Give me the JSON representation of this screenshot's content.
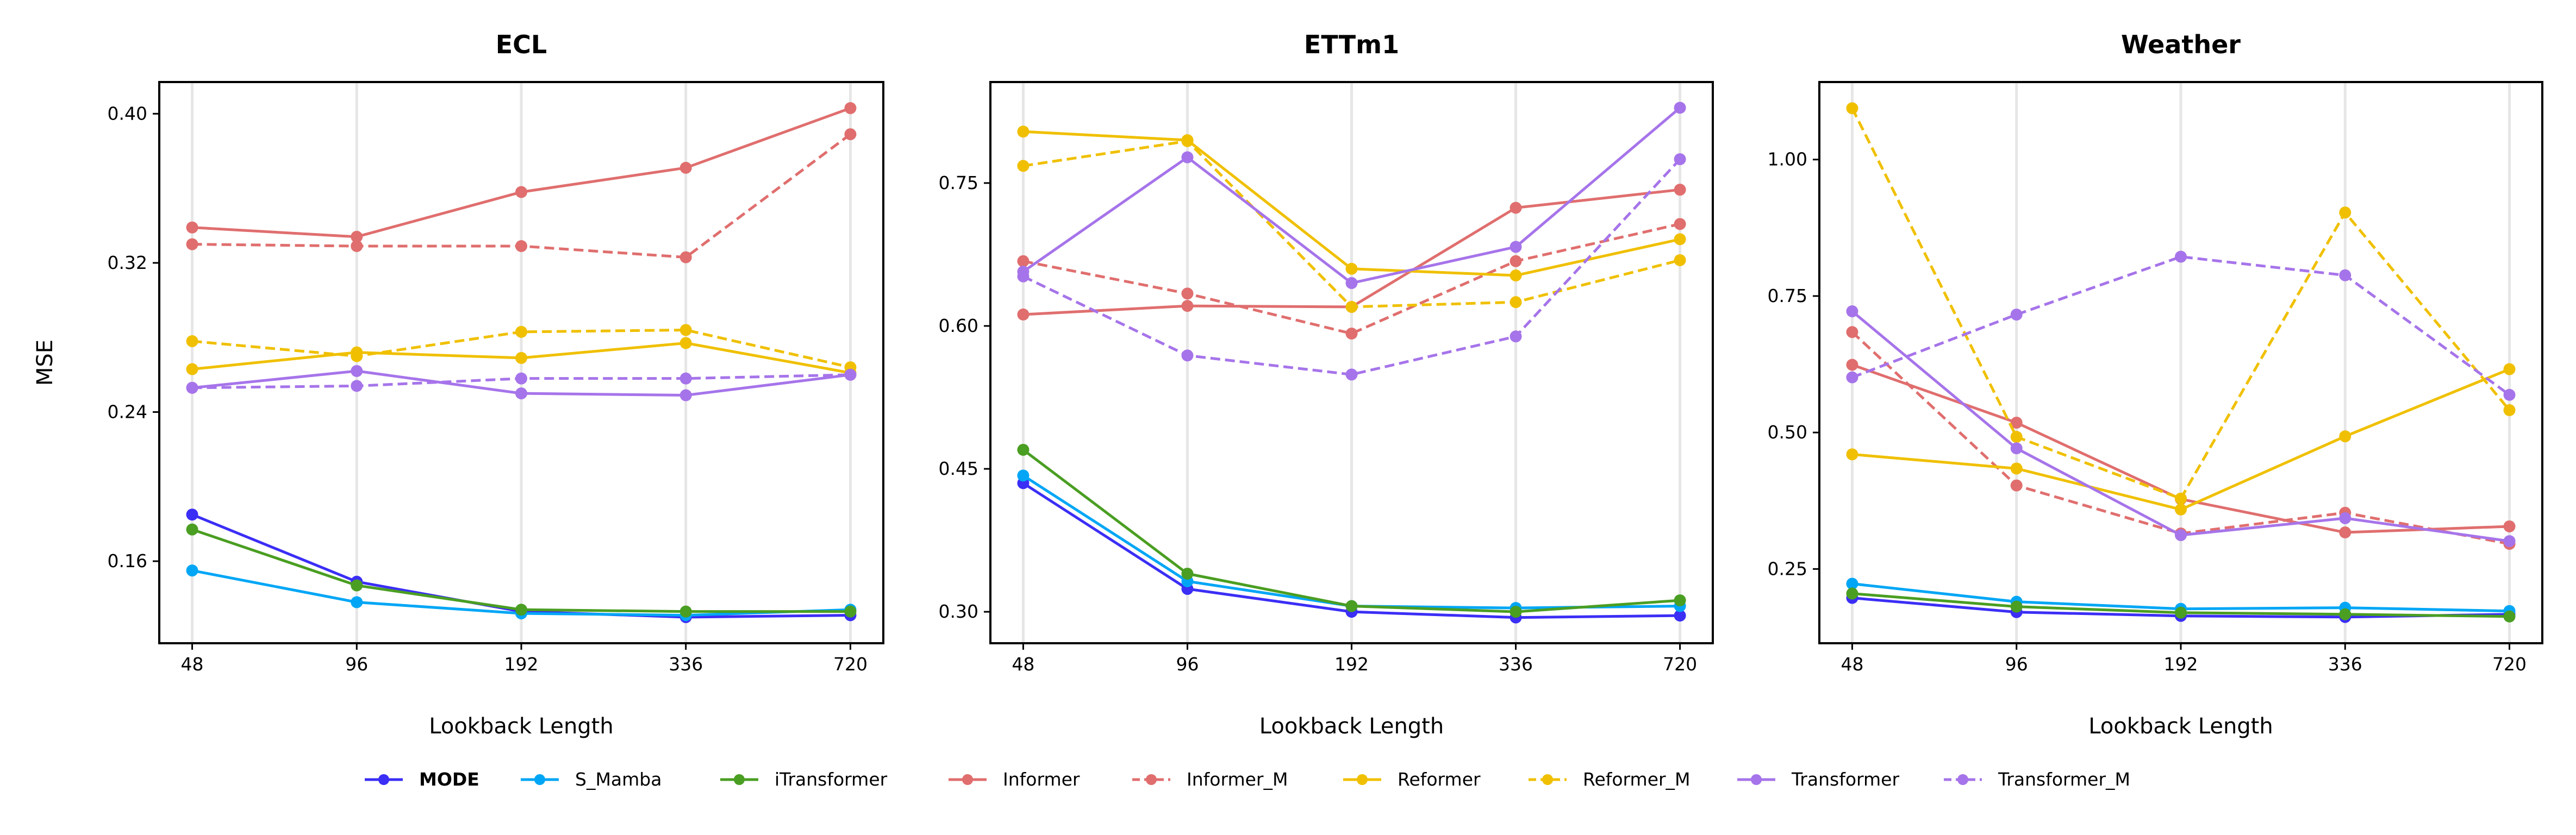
{
  "chart_data": [
    {
      "type": "line",
      "title": "ECL",
      "xlabel": "Lookback Length",
      "ylabel": "MSE",
      "categories": [
        "48",
        "96",
        "192",
        "336",
        "720"
      ],
      "yticks": [
        "0.16",
        "0.24",
        "0.32",
        "0.40"
      ],
      "ylim": [
        0.116,
        0.417
      ],
      "grid": "vertical",
      "series": [
        {
          "name": "MODE",
          "values": [
            0.185,
            0.149,
            0.133,
            0.13,
            0.131
          ]
        },
        {
          "name": "S_Mamba",
          "values": [
            0.155,
            0.138,
            0.132,
            0.131,
            0.134
          ]
        },
        {
          "name": "iTransformer",
          "values": [
            0.177,
            0.147,
            0.134,
            0.133,
            0.133
          ]
        },
        {
          "name": "Informer",
          "values": [
            0.339,
            0.334,
            0.358,
            0.371,
            0.403
          ]
        },
        {
          "name": "Informer_M",
          "values": [
            0.33,
            0.329,
            0.329,
            0.323,
            0.389
          ]
        },
        {
          "name": "Reformer",
          "values": [
            0.263,
            0.272,
            0.269,
            0.277,
            0.261
          ]
        },
        {
          "name": "Reformer_M",
          "values": [
            0.278,
            0.27,
            0.283,
            0.284,
            0.264
          ]
        },
        {
          "name": "Transformer",
          "values": [
            0.253,
            0.262,
            0.25,
            0.249,
            0.26
          ]
        },
        {
          "name": "Transformer_M",
          "values": [
            0.253,
            0.254,
            0.258,
            0.258,
            0.26
          ]
        }
      ]
    },
    {
      "type": "line",
      "title": "ETTm1",
      "xlabel": "Lookback Length",
      "ylabel": "",
      "categories": [
        "48",
        "96",
        "192",
        "336",
        "720"
      ],
      "yticks": [
        "0.30",
        "0.45",
        "0.60",
        "0.75"
      ],
      "ylim": [
        0.267,
        0.856
      ],
      "grid": "vertical",
      "series": [
        {
          "name": "MODE",
          "values": [
            0.435,
            0.324,
            0.3,
            0.294,
            0.296
          ]
        },
        {
          "name": "S_Mamba",
          "values": [
            0.443,
            0.332,
            0.306,
            0.304,
            0.306
          ]
        },
        {
          "name": "iTransformer",
          "values": [
            0.47,
            0.34,
            0.306,
            0.3,
            0.312
          ]
        },
        {
          "name": "Informer",
          "values": [
            0.612,
            0.621,
            0.62,
            0.724,
            0.743
          ]
        },
        {
          "name": "Informer_M",
          "values": [
            0.668,
            0.634,
            0.592,
            0.668,
            0.707
          ]
        },
        {
          "name": "Reformer",
          "values": [
            0.804,
            0.795,
            0.66,
            0.653,
            0.691
          ]
        },
        {
          "name": "Reformer_M",
          "values": [
            0.768,
            0.794,
            0.62,
            0.625,
            0.669
          ]
        },
        {
          "name": "Transformer",
          "values": [
            0.657,
            0.777,
            0.645,
            0.683,
            0.829
          ]
        },
        {
          "name": "Transformer_M",
          "values": [
            0.652,
            0.569,
            0.549,
            0.589,
            0.775
          ]
        }
      ]
    },
    {
      "type": "line",
      "title": "Weather",
      "xlabel": "Lookback Length",
      "ylabel": "",
      "categories": [
        "48",
        "96",
        "192",
        "336",
        "720"
      ],
      "yticks": [
        "0.25",
        "0.50",
        "0.75",
        "1.00"
      ],
      "ylim": [
        0.114,
        1.142
      ],
      "grid": "vertical",
      "series": [
        {
          "name": "MODE",
          "values": [
            0.197,
            0.171,
            0.164,
            0.162,
            0.167
          ]
        },
        {
          "name": "S_Mamba",
          "values": [
            0.223,
            0.19,
            0.177,
            0.179,
            0.173
          ]
        },
        {
          "name": "iTransformer",
          "values": [
            0.205,
            0.181,
            0.17,
            0.167,
            0.163
          ]
        },
        {
          "name": "Informer",
          "values": [
            0.624,
            0.518,
            0.378,
            0.317,
            0.328
          ]
        },
        {
          "name": "Informer_M",
          "values": [
            0.684,
            0.403,
            0.315,
            0.353,
            0.296
          ]
        },
        {
          "name": "Reformer",
          "values": [
            0.46,
            0.434,
            0.359,
            0.493,
            0.616
          ]
        },
        {
          "name": "Reformer_M",
          "values": [
            1.094,
            0.492,
            0.379,
            0.903,
            0.541
          ]
        },
        {
          "name": "Transformer",
          "values": [
            0.722,
            0.471,
            0.312,
            0.343,
            0.301
          ]
        },
        {
          "name": "Transformer_M",
          "values": [
            0.601,
            0.716,
            0.822,
            0.788,
            0.569
          ]
        }
      ]
    }
  ],
  "legend": {
    "placement": "bottom-center",
    "entries": [
      {
        "name": "MODE",
        "color": "#3b2ef5",
        "dashed": false,
        "bold": true
      },
      {
        "name": "S_Mamba",
        "color": "#00a6f5",
        "dashed": false,
        "bold": false
      },
      {
        "name": "iTransformer",
        "color": "#4a9e22",
        "dashed": false,
        "bold": false
      },
      {
        "name": "Informer",
        "color": "#e06e6e",
        "dashed": false,
        "bold": false
      },
      {
        "name": "Informer_M",
        "color": "#e06e6e",
        "dashed": true,
        "bold": false
      },
      {
        "name": "Reformer",
        "color": "#f0c000",
        "dashed": false,
        "bold": false
      },
      {
        "name": "Reformer_M",
        "color": "#f0c000",
        "dashed": true,
        "bold": false
      },
      {
        "name": "Transformer",
        "color": "#a674ea",
        "dashed": false,
        "bold": false
      },
      {
        "name": "Transformer_M",
        "color": "#a674ea",
        "dashed": true,
        "bold": false
      }
    ]
  }
}
